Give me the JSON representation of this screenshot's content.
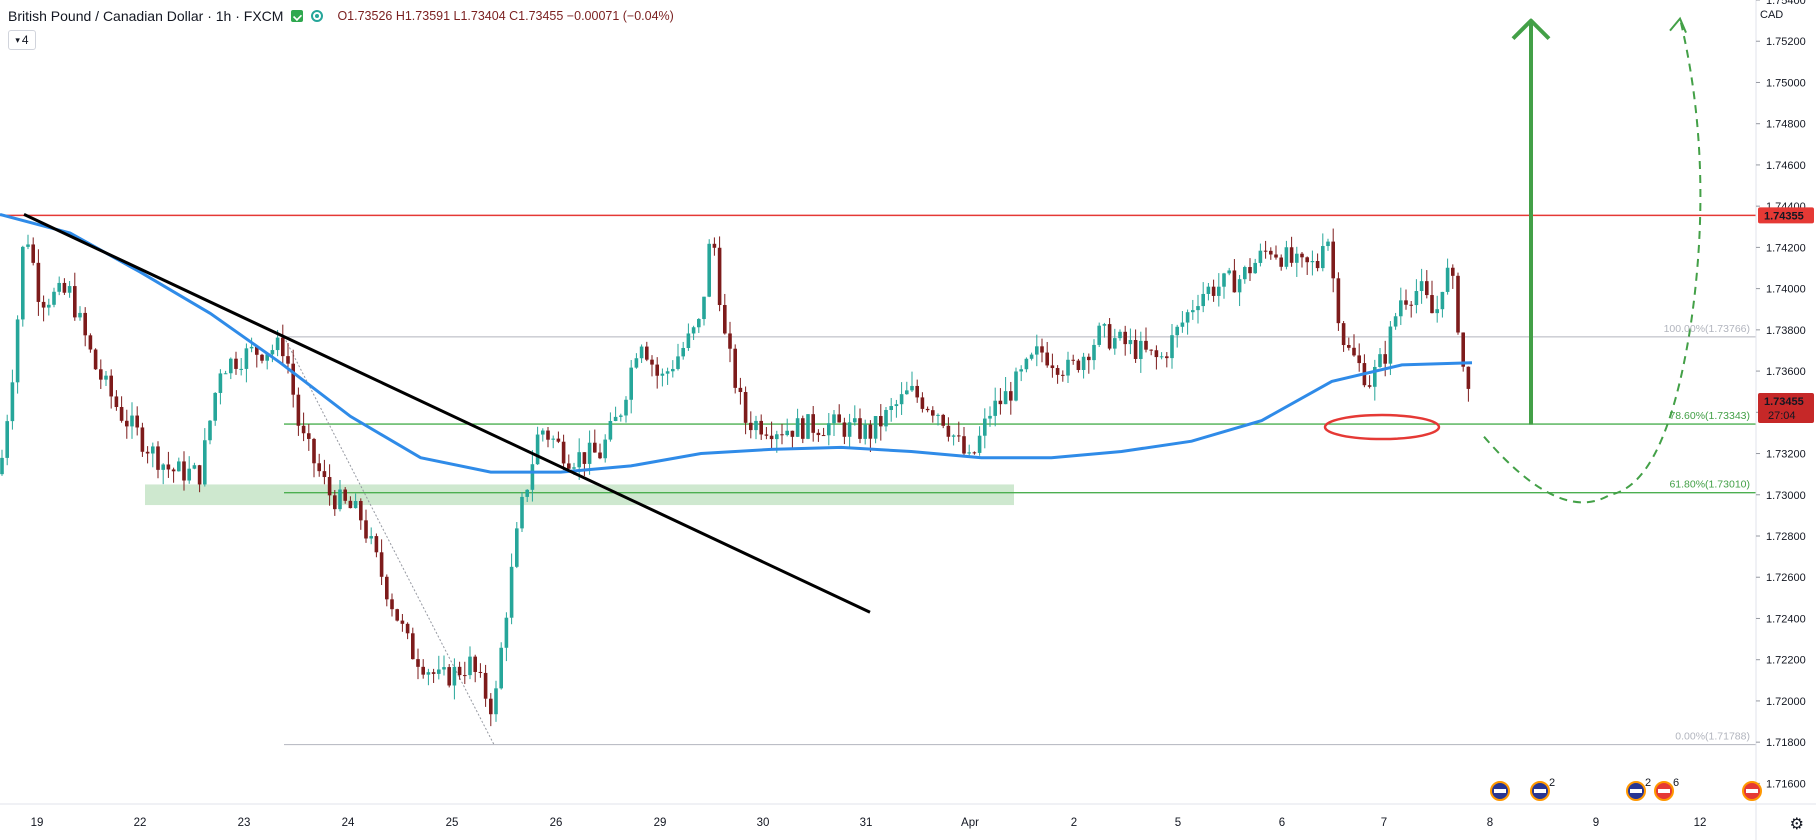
{
  "header": {
    "symbol": "British Pound / Canadian Dollar · 1h · FXCM",
    "ohlc": "O1.73526 H1.73591 L1.73404 C1.73455 −0.00071 (−0.04%)",
    "collapse_count": "4",
    "status_icon": "check-square-icon",
    "visibility_icon": "eye-icon"
  },
  "currency": "CAD",
  "colors": {
    "up": "#26a69a",
    "down": "#7d1b1b",
    "resistance": "#e53935",
    "fib": "#4caf50",
    "ma": "#2f8be8",
    "trendline": "#000000",
    "support_zone": "#a5d6a7"
  },
  "chart_data": {
    "type": "candlestick",
    "ylim": [
      1.715,
      1.754
    ],
    "y_ticks": [
      "1.75400",
      "1.75200",
      "1.75000",
      "1.74800",
      "1.74600",
      "1.74400",
      "1.74200",
      "1.74000",
      "1.73800",
      "1.73600",
      "1.73400",
      "1.73200",
      "1.73000",
      "1.72800",
      "1.72600",
      "1.72400",
      "1.72200",
      "1.72000",
      "1.71800",
      "1.71600"
    ],
    "x_ticks": [
      "19",
      "22",
      "23",
      "24",
      "25",
      "26",
      "29",
      "30",
      "31",
      "Apr",
      "2",
      "5",
      "6",
      "7",
      "8",
      "9",
      "12"
    ],
    "resistance": {
      "price": 1.74355,
      "label": "1.74355"
    },
    "last_price": {
      "price": 1.73455,
      "label": "1.73455",
      "countdown": "27:04"
    },
    "fibonacci": [
      {
        "level": "100.00%",
        "price": 1.73766,
        "label": "100.00%(1.73766)"
      },
      {
        "level": "78.60%",
        "price": 1.73343,
        "label": "78.60%(1.73343)"
      },
      {
        "level": "61.80%",
        "price": 1.7301,
        "label": "61.80%(1.73010)"
      },
      {
        "level": "0.00%",
        "price": 1.71788,
        "label": "0.00%(1.71788)"
      }
    ],
    "support_zone": [
      1.7295,
      1.7305
    ],
    "moving_average": [
      1.7436,
      1.7427,
      1.7408,
      1.7388,
      1.7364,
      1.7338,
      1.7318,
      1.7311,
      1.7311,
      1.7314,
      1.732,
      1.7322,
      1.7323,
      1.7321,
      1.7318,
      1.7318,
      1.7321,
      1.7326,
      1.7336,
      1.7355,
      1.7363,
      1.7364
    ],
    "trendline": [
      1.7436,
      1.7243
    ],
    "annotations": {
      "target_arrow": [
        1.7334,
        1.753
      ],
      "projection": [
        1.7334,
        1.73,
        1.753
      ]
    },
    "calendar_events": [
      {
        "icon": "flag-gb-icon",
        "count": ""
      },
      {
        "icon": "flag-gb-icon",
        "count": "2"
      },
      {
        "icon": "flag-gb-icon",
        "count": "2"
      },
      {
        "icon": "flag-ca-icon",
        "count": "6"
      },
      {
        "icon": "flag-ca-icon",
        "count": ""
      }
    ]
  }
}
